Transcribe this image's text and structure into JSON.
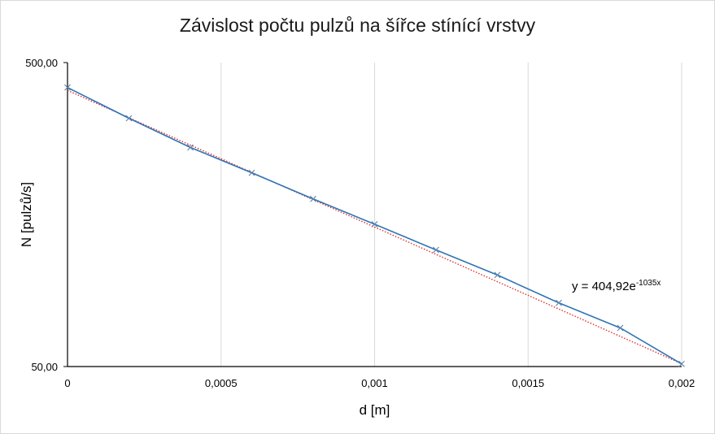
{
  "chart_data": {
    "type": "scatter",
    "title": "Závislost počtu pulzů na šířce stínící vrstvy",
    "xlabel": "d [m]",
    "ylabel": "N [pulzů/s]",
    "xlim": [
      0,
      0.002
    ],
    "ylim": [
      50,
      500
    ],
    "yscale": "log",
    "grid": "vertical",
    "x_ticks": [
      0,
      0.0005,
      0.001,
      0.0015,
      0.002
    ],
    "x_tick_labels": [
      "0",
      "0,0005",
      "0,001",
      "0,0015",
      "0,002"
    ],
    "y_ticks": [
      50,
      500
    ],
    "y_tick_labels": [
      "50,00",
      "500,00"
    ],
    "series": [
      {
        "x": [
          0,
          0.0002,
          0.0004,
          0.0006,
          0.0008,
          0.001,
          0.0012,
          0.0014,
          0.0016,
          0.0018,
          0.002
        ],
        "y": [
          414,
          328,
          263,
          217,
          178,
          147,
          121,
          100,
          81,
          67,
          51
        ],
        "marker": "x",
        "color": "#5b7fa6",
        "line_color": "#2e75b6"
      }
    ],
    "trendline": {
      "type": "exponential",
      "a": 404.92,
      "b": -1035,
      "color": "#e03030",
      "style": "dotted",
      "equation_base": "y = 404,92e",
      "equation_exp": "-1035x"
    }
  }
}
